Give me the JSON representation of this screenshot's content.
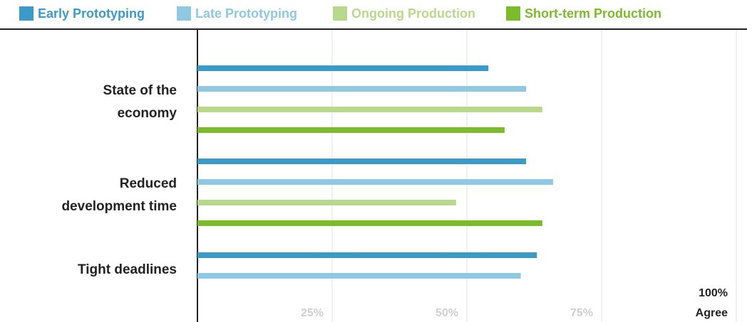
{
  "chart_data": {
    "type": "bar",
    "orientation": "horizontal",
    "categories": [
      [
        "State of the",
        "economy"
      ],
      [
        "Reduced",
        "development time"
      ],
      [
        "Tight deadlines"
      ]
    ],
    "series": [
      {
        "name": "Early Prototyping",
        "color": "#3a9bc9",
        "values": [
          54,
          61,
          63
        ]
      },
      {
        "name": "Late Prototyping",
        "color": "#8ec8e3",
        "values": [
          61,
          66,
          60
        ]
      },
      {
        "name": "Ongoing Production",
        "color": "#b9d98a",
        "values": [
          64,
          48,
          null
        ]
      },
      {
        "name": "Short-term Production",
        "color": "#7cbc2a",
        "values": [
          57,
          64,
          null
        ]
      }
    ],
    "xlim": [
      0,
      100
    ],
    "ticks": [
      "25%",
      "50%",
      "75%"
    ],
    "end_label": [
      "100%",
      "Agree"
    ],
    "grid": true,
    "legend_position": "top-left"
  }
}
